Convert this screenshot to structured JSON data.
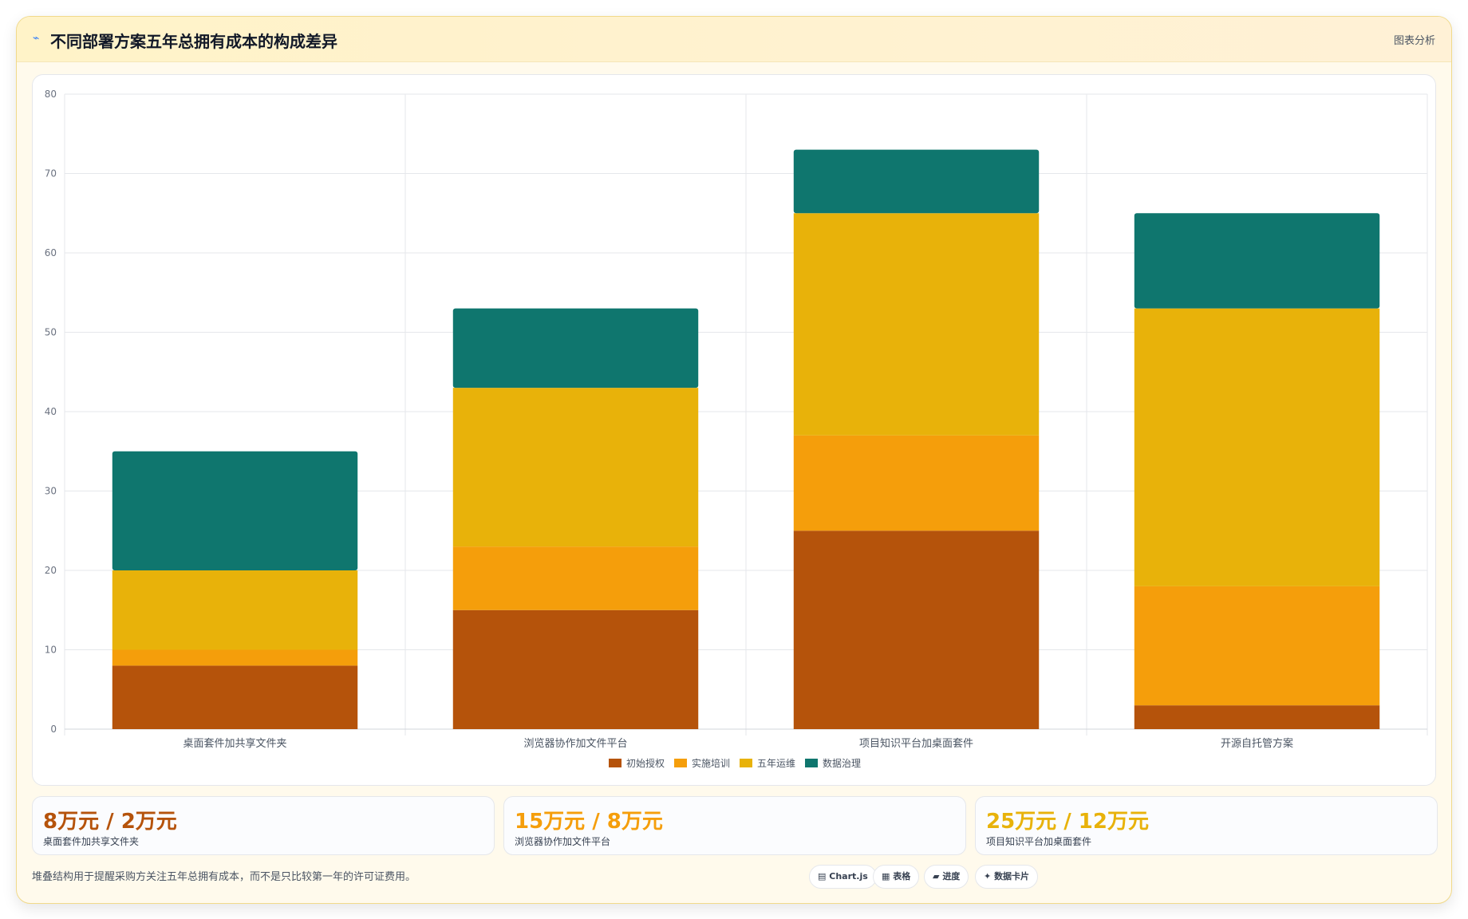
{
  "header": {
    "icon": "trend-icon",
    "title": "不同部署方案五年总拥有成本的构成差异",
    "action_label": "图表分析"
  },
  "chart_data": {
    "type": "bar",
    "stacked": true,
    "categories": [
      "桌面套件加共享文件夹",
      "浏览器协作加文件平台",
      "项目知识平台加桌面套件",
      "开源自托管方案"
    ],
    "series": [
      {
        "name": "初始授权",
        "color": "#b5530b",
        "values": [
          8,
          15,
          25,
          3
        ]
      },
      {
        "name": "实施培训",
        "color": "#f59e0b",
        "values": [
          2,
          8,
          12,
          15
        ]
      },
      {
        "name": "五年运维",
        "color": "#e8b20a",
        "values": [
          10,
          20,
          28,
          35
        ]
      },
      {
        "name": "数据治理",
        "color": "#0f766e",
        "values": [
          15,
          10,
          8,
          12
        ]
      }
    ],
    "ylim": [
      0,
      80
    ],
    "yticks": [
      "0",
      "10",
      "20",
      "30",
      "40",
      "50",
      "60",
      "70",
      "80"
    ],
    "grid": true,
    "legend_position": "bottom"
  },
  "stats": [
    {
      "value": "8万元 / 2万元",
      "label": "桌面套件加共享文件夹",
      "color": "#b5530b"
    },
    {
      "value": "15万元 / 8万元",
      "label": "浏览器协作加文件平台",
      "color": "#f59e0b"
    },
    {
      "value": "25万元 / 12万元",
      "label": "项目知识平台加桌面套件",
      "color": "#e8b20a"
    }
  ],
  "footnote": "堆叠结构用于提醒采购方关注五年总拥有成本，而不是只比较第一年的许可证费用。",
  "chips": [
    {
      "icon": "chart-icon",
      "glyph": "▤",
      "label": "Chart.js"
    },
    {
      "icon": "table-icon",
      "glyph": "▦",
      "label": "表格"
    },
    {
      "icon": "progress-icon",
      "glyph": "▰",
      "label": "进度"
    },
    {
      "icon": "data-card-icon",
      "glyph": "✦",
      "label": "数据卡片"
    }
  ]
}
